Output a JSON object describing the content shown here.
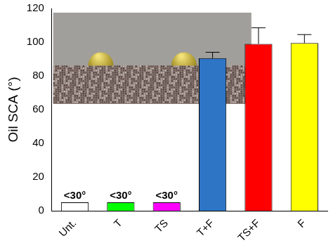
{
  "chart_data": {
    "type": "bar",
    "y_label": "Oil SCA (°)",
    "categories": [
      "Unt.",
      "T",
      "TS",
      "T+F",
      "TS+F",
      "F"
    ],
    "values": [
      5,
      5,
      5,
      90.5,
      99,
      99.5
    ],
    "errors": [
      null,
      null,
      null,
      3.5,
      9.5,
      5
    ],
    "colors": [
      "#ffffff",
      "#00ff00",
      "#ff00ff",
      "#2e75c6",
      "#ff0000",
      "#ffff00"
    ],
    "annotations": [
      {
        "category": "Unt.",
        "text": "<30°"
      },
      {
        "category": "T",
        "text": "<30°"
      },
      {
        "category": "TS",
        "text": "<30°"
      }
    ],
    "ylim": [
      0,
      120
    ],
    "yticks": [
      0,
      20,
      40,
      60,
      80,
      100,
      120
    ],
    "grid": false
  }
}
